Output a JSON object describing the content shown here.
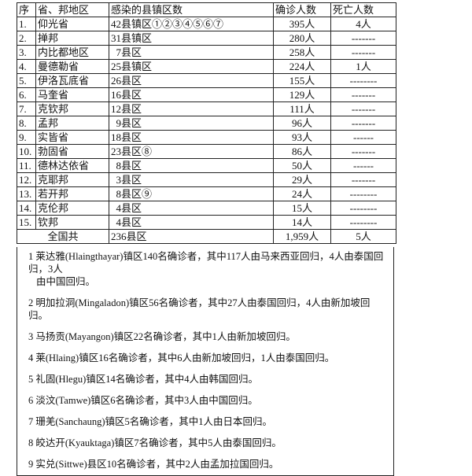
{
  "header": [
    "序",
    "省、邦地区",
    "感染的县镇区数",
    "确诊人数",
    "死亡人数"
  ],
  "rows": [
    {
      "no": "1.",
      "region": "仰光省",
      "districts": "42县镇区①②③④⑤⑥⑦",
      "cases": "395人",
      "deaths": "4人"
    },
    {
      "no": "2.",
      "region": "掸邦",
      "districts": "31县镇区",
      "cases": "280人",
      "deaths": "-------"
    },
    {
      "no": "3.",
      "region": "内比都地区",
      "districts": "  7县区",
      "cases": "258人",
      "deaths": "-------"
    },
    {
      "no": "4.",
      "region": "曼德勒省",
      "districts": "25县镇区",
      "cases": "224人",
      "deaths": "1人"
    },
    {
      "no": "5.",
      "region": "伊洛瓦底省",
      "districts": "26县区",
      "cases": "155人",
      "deaths": "--------"
    },
    {
      "no": "6.",
      "region": "马奎省",
      "districts": "16县区",
      "cases": "129人",
      "deaths": "-------"
    },
    {
      "no": "7.",
      "region": "克钦邦",
      "districts": "12县区",
      "cases": "111人",
      "deaths": "-------"
    },
    {
      "no": "8.",
      "region": "孟邦",
      "districts": "  9县区",
      "cases": "96人",
      "deaths": "-------"
    },
    {
      "no": "9.",
      "region": "实皆省",
      "districts": "18县区",
      "cases": "93人",
      "deaths": "------"
    },
    {
      "no": "10.",
      "region": "勃固省",
      "districts": "23县区⑧",
      "cases": "86人",
      "deaths": "-------"
    },
    {
      "no": "11.",
      "region": "德林达依省",
      "districts": "  8县区",
      "cases": "50人",
      "deaths": "------"
    },
    {
      "no": "12.",
      "region": "克耶邦",
      "districts": "  3县区",
      "cases": "29人",
      "deaths": "-------"
    },
    {
      "no": "13.",
      "region": "若开邦",
      "districts": "  8县区⑨",
      "cases": "24人",
      "deaths": "--------"
    },
    {
      "no": "14.",
      "region": "克伦邦",
      "districts": "  4县区",
      "cases": "15人",
      "deaths": "--------"
    },
    {
      "no": "15.",
      "region": "钦邦",
      "districts": "  4县区",
      "cases": "14人",
      "deaths": "--------"
    }
  ],
  "total": {
    "label": "全国共",
    "districts": "236县区",
    "cases": "1,959人",
    "deaths": "5人"
  },
  "notes": [
    {
      "line1": "1 莱达雅(Hlaingthayar)镇区140名确诊者，其中117人由马来西亚回归，4人由泰国回归，3人",
      "line2": "由中国回归。"
    },
    {
      "line1": "2 明加拉洞(Mingaladon)镇区56名确诊者，其中27人由泰国回归，4人由新加坡回归。"
    },
    {
      "line1": "3 马扬贡(Mayangon)镇区22名确诊者，其中1人由新加坡回归。"
    },
    {
      "line1": "4 莱(Hlaing)镇区16名确诊者，其中6人由新加坡回归，1人由泰国回归。"
    },
    {
      "line1": "5 礼固(Hlegu)镇区14名确诊者，其中4人由韩国回归。"
    },
    {
      "line1": "6 淡汶(Tamwe)镇区6名确诊者，其中3人由中国回归。"
    },
    {
      "line1": "7 珊羌(Sanchaung)镇区5名确诊者，其中1人由日本回归。"
    },
    {
      "line1": "8 皎达开(Kyauktaga)镇区7名确诊者，其中5人由泰国回归。"
    },
    {
      "line1": "9 实兑(Sittwe)县区10名确诊者，其中2人由孟加拉国回归。"
    }
  ]
}
